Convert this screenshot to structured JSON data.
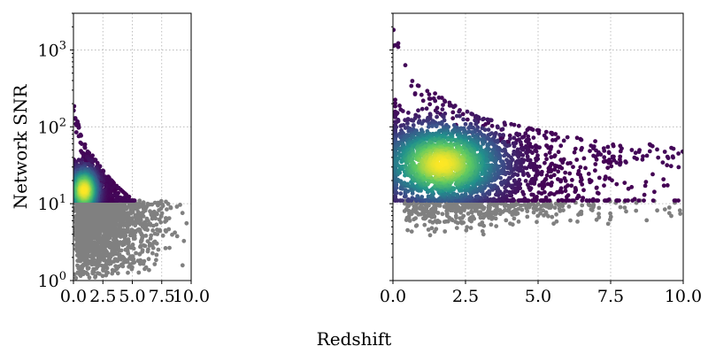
{
  "chart_data": {
    "type": "scatter",
    "xlabel": "Redshift",
    "ylabel": "Network SNR",
    "yscale": "log",
    "xlim": [
      0,
      10
    ],
    "ylim": [
      1,
      3000
    ],
    "grid": true,
    "shared_y": true,
    "x_ticks": [
      "0.0",
      "2.5",
      "5.0",
      "7.5",
      "10.0"
    ],
    "y_ticks": [
      {
        "base": "10",
        "exp": "0"
      },
      {
        "base": "10",
        "exp": "1"
      },
      {
        "base": "10",
        "exp": "2"
      },
      {
        "base": "10",
        "exp": "3"
      }
    ],
    "snr_threshold": 11,
    "colors": {
      "below_threshold": "#808080",
      "density_colormap": [
        "#440154",
        "#3b528b",
        "#21918c",
        "#5ec962",
        "#fde725"
      ]
    },
    "panels": [
      {
        "name": "left",
        "density_peak": {
          "x": 0.9,
          "y": 15
        },
        "detected_max_redshift": 5.2,
        "upper_envelope": [
          [
            0.05,
            220
          ],
          [
            0.3,
            130
          ],
          [
            0.8,
            65
          ],
          [
            1.5,
            45
          ],
          [
            2.5,
            27
          ],
          [
            3.5,
            18
          ],
          [
            4.5,
            13
          ],
          [
            5.2,
            11
          ]
        ],
        "below_extent": {
          "x_max": 10,
          "y_min": 1
        }
      },
      {
        "name": "right",
        "density_peak": {
          "x": 1.7,
          "y": 33
        },
        "detected_max_redshift": 10,
        "upper_envelope": [
          [
            0.1,
            2000
          ],
          [
            0.4,
            700
          ],
          [
            1.0,
            350
          ],
          [
            2.0,
            200
          ],
          [
            3.0,
            130
          ],
          [
            4.0,
            110
          ],
          [
            5.0,
            90
          ],
          [
            6.5,
            70
          ],
          [
            8.0,
            55
          ],
          [
            9.0,
            60
          ],
          [
            10.0,
            50
          ]
        ],
        "below_extent": {
          "x_max": 10,
          "y_min": 2
        }
      }
    ]
  }
}
